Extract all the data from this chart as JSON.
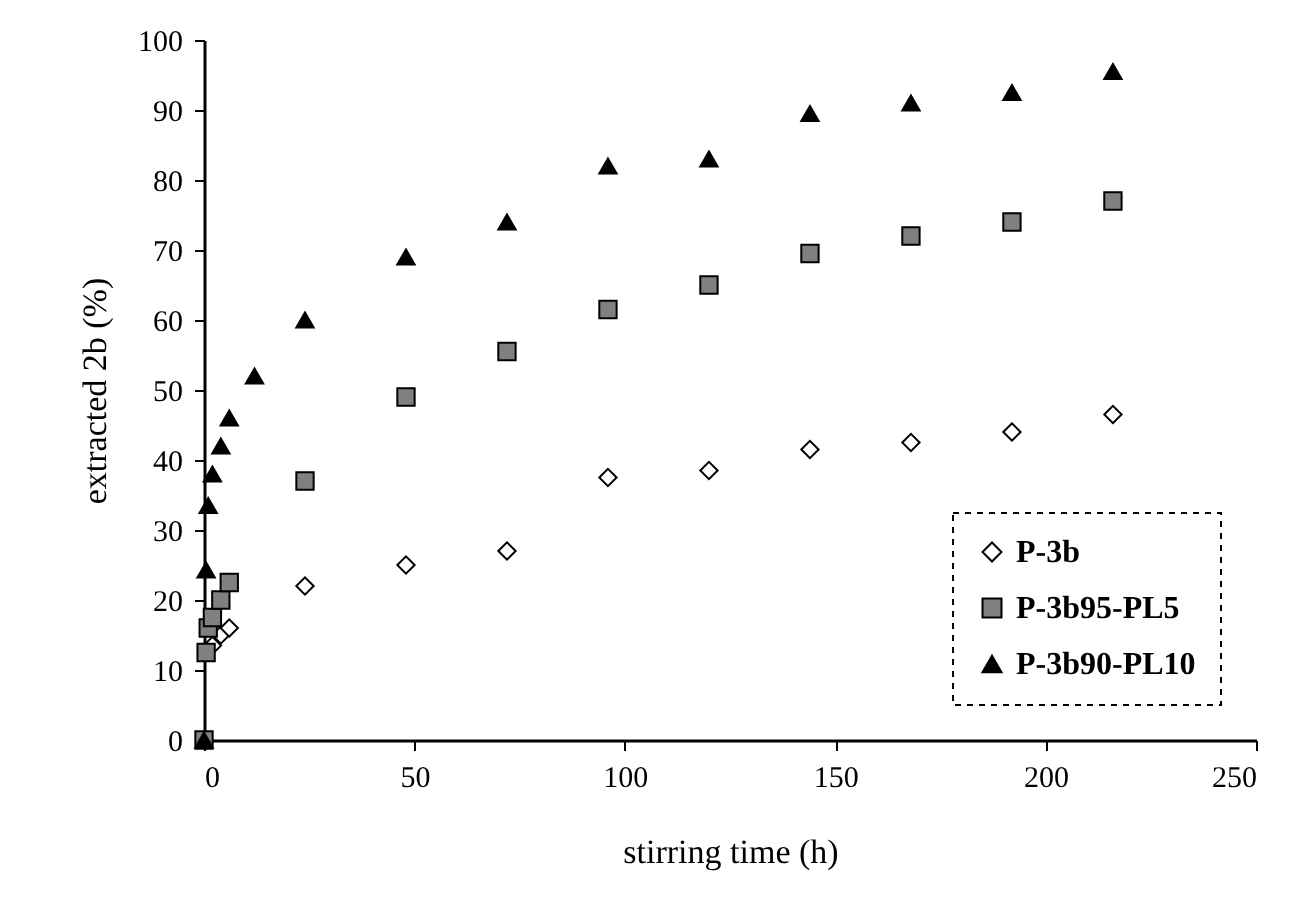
{
  "chart_data": {
    "type": "scatter",
    "xlabel": "stirring time (h)",
    "ylabel": "extracted 2b (%)",
    "xlim": [
      0,
      250
    ],
    "xticks": [
      0,
      50,
      100,
      150,
      200,
      250
    ],
    "ylim": [
      0,
      100
    ],
    "yticks": [
      0,
      10,
      20,
      30,
      40,
      50,
      60,
      70,
      80,
      90,
      100
    ],
    "grid": false,
    "legend": "bottom right",
    "series": [
      {
        "name": "P-3b",
        "color": "#ffffff",
        "marker": "diamond",
        "x": [
          2,
          4,
          6,
          24,
          48,
          72,
          96,
          120,
          144,
          168,
          192,
          216
        ],
        "values": [
          13.5,
          15,
          16,
          22,
          25,
          27,
          37.5,
          38.5,
          41.5,
          42.5,
          44,
          46.5
        ]
      },
      {
        "name": "P-3b95-PL5",
        "color": "#808080",
        "marker": "square",
        "x": [
          0,
          0.5,
          1,
          2,
          4,
          6,
          24,
          48,
          72,
          96,
          120,
          144,
          168,
          192,
          216
        ],
        "values": [
          0,
          12.5,
          16,
          17.5,
          20,
          22.5,
          37,
          49,
          55.5,
          61.5,
          65,
          69.5,
          72,
          74,
          77
        ]
      },
      {
        "name": "P-3b90-PL10",
        "color": "#000000",
        "marker": "triangle",
        "x": [
          0,
          0.5,
          1,
          2,
          4,
          6,
          12,
          24,
          48,
          72,
          96,
          120,
          144,
          168,
          192,
          216
        ],
        "values": [
          0,
          24.3,
          33.5,
          38,
          42,
          46,
          52,
          60,
          69,
          74,
          82,
          83,
          89.5,
          91,
          92.5,
          95.5
        ]
      }
    ]
  }
}
